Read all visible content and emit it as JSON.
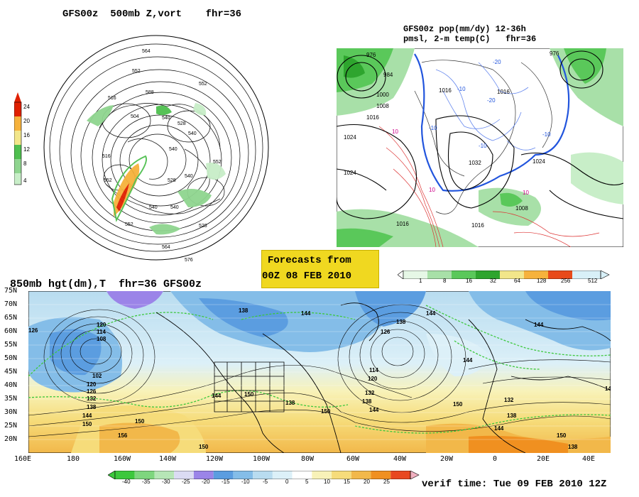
{
  "panel_500mb": {
    "title": "GFS00z  500mb Z,vort    fhr=36",
    "colorbar_ticks": [
      "24",
      "20",
      "16",
      "12",
      "8",
      "4"
    ],
    "colorbar_colors": [
      "#e02000",
      "#f6b23c",
      "#f2e68a",
      "#4fbf4f",
      "#8fd58f",
      "#c8eec8"
    ],
    "contour_labels": [
      "564",
      "552",
      "516",
      "588",
      "552",
      "504",
      "540",
      "528",
      "540",
      "516",
      "552",
      "540",
      "528",
      "552",
      "540",
      "540",
      "564",
      "576",
      "552",
      "528",
      "540"
    ]
  },
  "panel_precip": {
    "title_line1": "GFS00z pop(mm/dy) 12-36h",
    "title_line2": "pmsl, 2-m temp(C)   fhr=36",
    "isobar_labels": [
      "976",
      "984",
      "1000",
      "1008",
      "1016",
      "1024",
      "1024",
      "1016",
      "1016",
      "1032",
      "1024",
      "1008",
      "1016",
      "1016",
      "976"
    ],
    "temp_labels": [
      "-10",
      "-20",
      "-10",
      "10",
      "10",
      "-10",
      "-20",
      "-10",
      "10"
    ],
    "colorbar_ticks": [
      "1",
      "8",
      "16",
      "32",
      "64",
      "128",
      "256",
      "512"
    ],
    "colorbar_colors": [
      "#e6f7e6",
      "#a8e0a8",
      "#5ac85a",
      "#2ea52e",
      "#f2e68a",
      "#f6b23c",
      "#e84a1a",
      "#d8f0f8"
    ]
  },
  "forecast_box": {
    "line1": "Forecasts from",
    "line2": "00Z 08 FEB 2010"
  },
  "panel_850mb": {
    "title": "850mb hgt(dm),T  fhr=36 GFS00z",
    "lat_labels": [
      "75N",
      "70N",
      "65N",
      "60N",
      "55N",
      "50N",
      "45N",
      "40N",
      "35N",
      "30N",
      "25N",
      "20N"
    ],
    "lon_labels": [
      "160E",
      "180",
      "160W",
      "140W",
      "120W",
      "100W",
      "80W",
      "60W",
      "40W",
      "20W",
      "0",
      "20E",
      "40E"
    ],
    "height_labels": [
      "126",
      "120",
      "114",
      "108",
      "102",
      "120",
      "126",
      "132",
      "138",
      "144",
      "150",
      "156",
      "150",
      "144",
      "150",
      "138",
      "144",
      "150",
      "150",
      "138",
      "126",
      "114",
      "120",
      "132",
      "138",
      "144",
      "144",
      "138",
      "144",
      "144",
      "150",
      "132",
      "138",
      "150",
      "144",
      "144",
      "138"
    ],
    "colorbar_ticks": [
      "-40",
      "-35",
      "-30",
      "-25",
      "-20",
      "-15",
      "-10",
      "-5",
      "0",
      "5",
      "10",
      "15",
      "20",
      "25"
    ],
    "colorbar_colors": [
      "#3cc83c",
      "#7ed67e",
      "#b6e6b6",
      "#dbdbf3",
      "#9b84e8",
      "#5b9de0",
      "#84bde8",
      "#b8dcf0",
      "#dcf0f8",
      "#ffffff",
      "#f8f2b8",
      "#f6dc7a",
      "#f2b84a",
      "#f09020",
      "#e84820",
      "#f0b0c0"
    ]
  },
  "verif_time": "verif time: Tue 09 FEB 2010 12Z"
}
